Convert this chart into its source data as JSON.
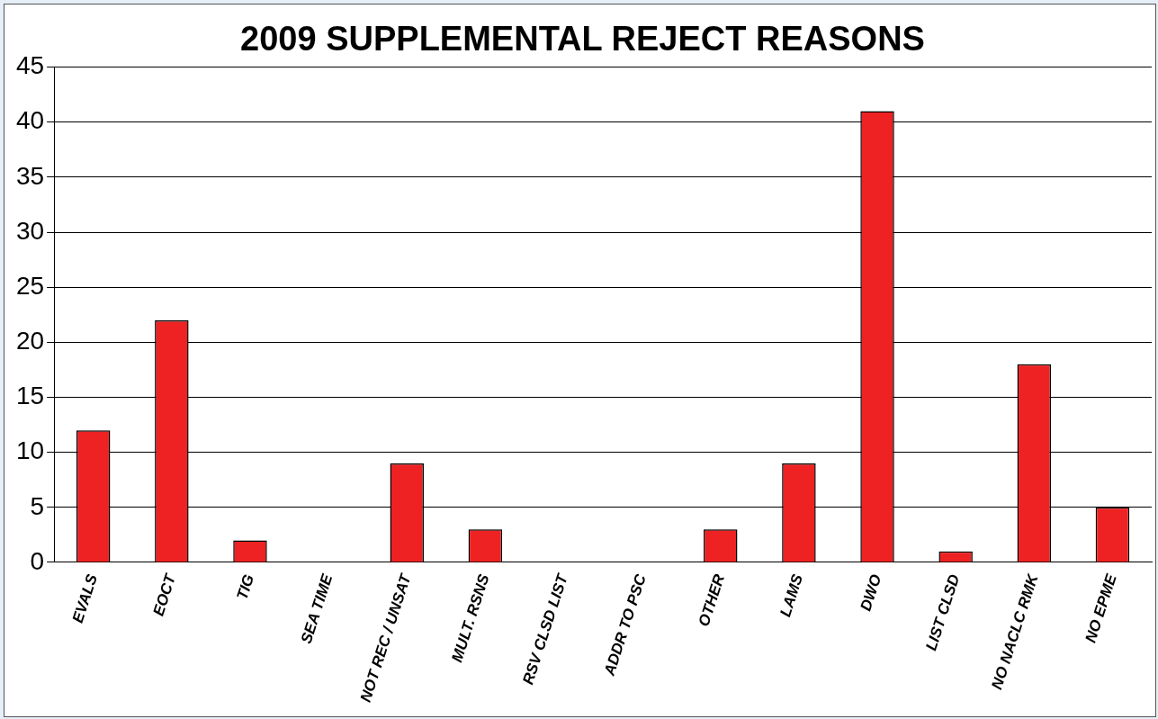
{
  "chart_data": {
    "type": "bar",
    "title": "2009 SUPPLEMENTAL REJECT REASONS",
    "categories": [
      "EVALS",
      "EOCT",
      "TIG",
      "SEA TIME",
      "NOT REC / UNSAT",
      "MULT. RSNS",
      "RSV CLSD LIST",
      "ADDR TO PSC",
      "OTHER",
      "LAMS",
      "DWO",
      "LIST CLSD",
      "NO NACLC RMK",
      "NO EPME"
    ],
    "values": [
      12,
      22,
      2,
      0,
      9,
      3,
      0,
      0,
      3,
      9,
      41,
      1,
      18,
      5
    ],
    "color": "#ee2222",
    "ylim": [
      0,
      45
    ],
    "yticks": [
      0,
      5,
      10,
      15,
      20,
      25,
      30,
      35,
      40,
      45
    ],
    "grid": "y",
    "legend": false
  }
}
